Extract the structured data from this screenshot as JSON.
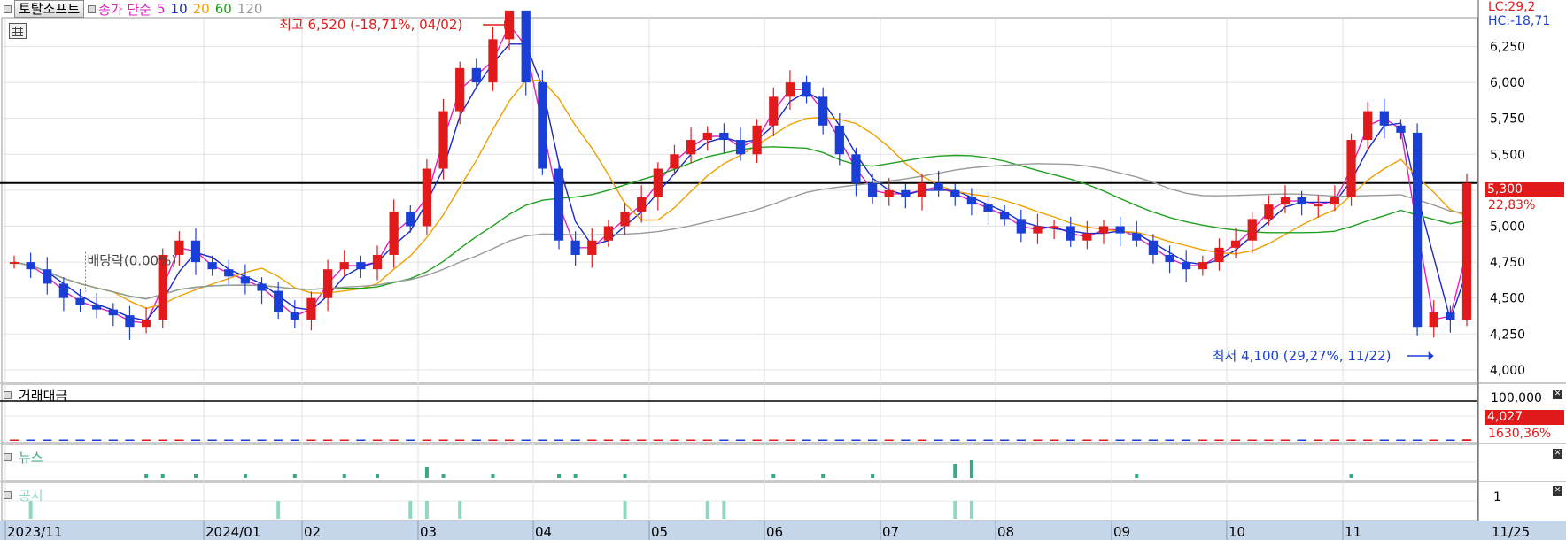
{
  "header": {
    "stock_name": "토탈소프트",
    "price_type": "종가 단순",
    "ma_labels": [
      {
        "label": "5",
        "color": "#e020c0"
      },
      {
        "label": "10",
        "color": "#1a28c8"
      },
      {
        "label": "20",
        "color": "#f0a000"
      },
      {
        "label": "60",
        "color": "#20a020"
      },
      {
        "label": "120",
        "color": "#9a9a9a"
      }
    ]
  },
  "annotations": {
    "high": "최고 6,520 (-18,71%, 04/02)",
    "low": "최저 4,100 (29,27%, 11/22)",
    "dividend": "배당락(0.00%)"
  },
  "right_info": {
    "lc": "LC:29,2",
    "hc": "HC:-18,71",
    "price_badge": "5,300",
    "price_change": "22,83%",
    "volume_badge": "4,027",
    "volume_change": "1630,36%",
    "volume_axis": "100,000",
    "disclosure_axis": "1"
  },
  "panels": {
    "volume": "거래대금",
    "news": "뉴스",
    "disclosure": "공시"
  },
  "x_axis": {
    "labels": [
      "2023/11",
      "2024/01",
      "02",
      "03",
      "04",
      "05",
      "06",
      "07",
      "08",
      "09",
      "10",
      "11",
      "11/25"
    ]
  },
  "colors": {
    "up": "#e11b1b",
    "down": "#1a3fd6",
    "news_bar": "#3aa880",
    "disclosure_bar": "#8fd8bf"
  },
  "chart_data": {
    "type": "candlestick",
    "x_range": [
      "2023-11-01",
      "2024-11-25"
    ],
    "ylim": [
      3950,
      6450
    ],
    "y_ticks": [
      4000,
      4250,
      4500,
      4750,
      5000,
      5250,
      5500,
      5750,
      6000,
      6250
    ],
    "reference_line": 5300,
    "series": [
      {
        "name": "종가",
        "values": [
          4750,
          4700,
          4600,
          4500,
          4450,
          4420,
          4380,
          4300,
          4350,
          4800,
          4900,
          4750,
          4700,
          4650,
          4600,
          4550,
          4400,
          4350,
          4500,
          4700,
          4750,
          4700,
          4800,
          5100,
          5000,
          5400,
          5800,
          6100,
          6000,
          6300,
          6500,
          6000,
          5400,
          4900,
          4800,
          4900,
          5000,
          5100,
          5200,
          5400,
          5500,
          5600,
          5650,
          5600,
          5500,
          5700,
          5900,
          6000,
          5900,
          5700,
          5500,
          5300,
          5200,
          5250,
          5200,
          5300,
          5250,
          5200,
          5150,
          5100,
          5050,
          4950,
          5000,
          5000,
          4900,
          4950,
          5000,
          4950,
          4900,
          4800,
          4750,
          4700,
          4750,
          4850,
          4900,
          5050,
          5150,
          5200,
          5150,
          5150,
          5200,
          5600,
          5800,
          5700,
          5650,
          4300,
          4400,
          4350,
          5300
        ]
      }
    ],
    "volume": {
      "name": "거래대금",
      "values": [
        300,
        280,
        260,
        250,
        240,
        240,
        230,
        240,
        260,
        900,
        500,
        350,
        300,
        280,
        270,
        260,
        300,
        280,
        350,
        320,
        300,
        290,
        300,
        800,
        400,
        600,
        900,
        1800,
        1400,
        1200,
        1500,
        900,
        1000,
        700,
        600,
        500,
        450,
        420,
        400,
        500,
        450,
        420,
        400,
        380,
        350,
        400,
        500,
        600,
        450,
        400,
        380,
        350,
        320,
        300,
        300,
        300,
        280,
        260,
        260,
        250,
        240,
        240,
        250,
        260,
        260,
        250,
        240,
        250,
        240,
        260,
        250,
        240,
        250,
        280,
        300,
        320,
        300,
        280,
        260,
        300,
        350,
        380,
        300,
        300,
        280,
        600,
        450,
        400,
        4027
      ]
    },
    "news": {
      "name": "뉴스",
      "values": [
        0,
        0,
        0,
        0,
        0,
        0,
        0,
        0,
        1,
        1,
        0,
        1,
        0,
        0,
        1,
        0,
        0,
        1,
        0,
        0,
        1,
        0,
        1,
        0,
        0,
        3,
        1,
        0,
        0,
        1,
        0,
        0,
        0,
        1,
        1,
        0,
        0,
        1,
        0,
        0,
        0,
        0,
        0,
        0,
        0,
        0,
        1,
        0,
        0,
        1,
        0,
        0,
        1,
        0,
        0,
        0,
        0,
        4,
        5,
        0,
        0,
        0,
        0,
        0,
        0,
        0,
        0,
        0,
        1,
        0,
        0,
        0,
        0,
        0,
        0,
        0,
        0,
        0,
        0,
        0,
        0,
        1,
        0,
        0,
        0,
        0,
        0,
        0,
        0
      ]
    },
    "disclosure": {
      "name": "공시",
      "values": [
        0,
        1,
        0,
        0,
        0,
        0,
        0,
        0,
        0,
        0,
        0,
        0,
        0,
        0,
        0,
        0,
        1,
        0,
        0,
        0,
        0,
        0,
        0,
        0,
        1,
        1,
        0,
        1,
        0,
        0,
        0,
        0,
        0,
        0,
        0,
        0,
        0,
        1,
        0,
        0,
        0,
        0,
        1,
        1,
        0,
        0,
        0,
        0,
        0,
        0,
        0,
        0,
        0,
        0,
        0,
        0,
        0,
        1,
        1,
        0,
        0,
        0,
        0,
        0,
        0,
        0,
        0,
        0,
        0,
        0,
        0,
        0,
        0,
        0,
        0,
        0,
        0,
        0,
        0,
        0,
        0,
        0,
        0,
        0,
        0,
        0,
        0,
        0,
        0
      ]
    }
  }
}
